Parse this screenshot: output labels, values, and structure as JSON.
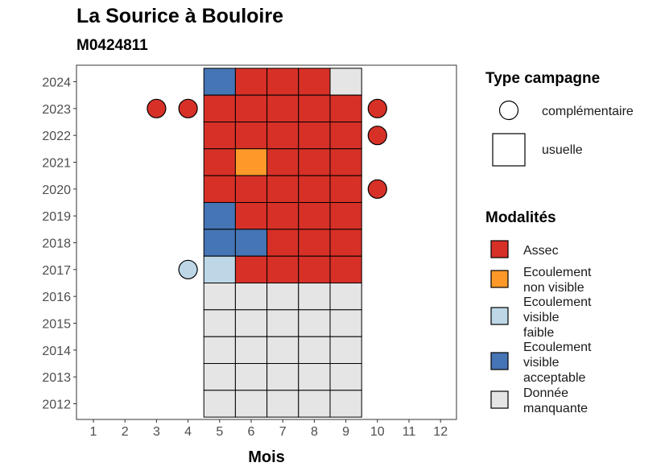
{
  "chart_data": {
    "type": "heatmap",
    "title": "La Sourice à Bouloire",
    "subtitle": "M0424811",
    "xlabel": "Mois",
    "ylabel": "",
    "x_ticks": [
      "1",
      "2",
      "3",
      "4",
      "5",
      "6",
      "7",
      "8",
      "9",
      "10",
      "11",
      "12"
    ],
    "y_ticks": [
      "2012",
      "2013",
      "2014",
      "2015",
      "2016",
      "2017",
      "2018",
      "2019",
      "2020",
      "2021",
      "2022",
      "2023",
      "2024"
    ],
    "grid": false,
    "legend_position": "right",
    "modalites": [
      {
        "key": "assec",
        "label": "Assec",
        "color": "#D73027"
      },
      {
        "key": "nonvis",
        "label": "Ecoulement non visible",
        "color": "#FE9929"
      },
      {
        "key": "faible",
        "label": "Ecoulement visible faible",
        "color": "#BDD7E7"
      },
      {
        "key": "accept",
        "label": "Ecoulement visible acceptable",
        "color": "#4575B4"
      },
      {
        "key": "manq",
        "label": "Donnée manquante",
        "color": "#E5E5E5"
      }
    ],
    "type_campagne": [
      {
        "key": "complementaire",
        "label": "complémentaire",
        "shape": "circle"
      },
      {
        "key": "usuelle",
        "label": "usuelle",
        "shape": "square"
      }
    ],
    "usuelle": [
      {
        "year": 2024,
        "month": 5,
        "value": "accept"
      },
      {
        "year": 2024,
        "month": 6,
        "value": "assec"
      },
      {
        "year": 2024,
        "month": 7,
        "value": "assec"
      },
      {
        "year": 2024,
        "month": 8,
        "value": "assec"
      },
      {
        "year": 2024,
        "month": 9,
        "value": "manq"
      },
      {
        "year": 2023,
        "month": 5,
        "value": "assec"
      },
      {
        "year": 2023,
        "month": 6,
        "value": "assec"
      },
      {
        "year": 2023,
        "month": 7,
        "value": "assec"
      },
      {
        "year": 2023,
        "month": 8,
        "value": "assec"
      },
      {
        "year": 2023,
        "month": 9,
        "value": "assec"
      },
      {
        "year": 2022,
        "month": 5,
        "value": "assec"
      },
      {
        "year": 2022,
        "month": 6,
        "value": "assec"
      },
      {
        "year": 2022,
        "month": 7,
        "value": "assec"
      },
      {
        "year": 2022,
        "month": 8,
        "value": "assec"
      },
      {
        "year": 2022,
        "month": 9,
        "value": "assec"
      },
      {
        "year": 2021,
        "month": 5,
        "value": "assec"
      },
      {
        "year": 2021,
        "month": 6,
        "value": "nonvis"
      },
      {
        "year": 2021,
        "month": 7,
        "value": "assec"
      },
      {
        "year": 2021,
        "month": 8,
        "value": "assec"
      },
      {
        "year": 2021,
        "month": 9,
        "value": "assec"
      },
      {
        "year": 2020,
        "month": 5,
        "value": "assec"
      },
      {
        "year": 2020,
        "month": 6,
        "value": "assec"
      },
      {
        "year": 2020,
        "month": 7,
        "value": "assec"
      },
      {
        "year": 2020,
        "month": 8,
        "value": "assec"
      },
      {
        "year": 2020,
        "month": 9,
        "value": "assec"
      },
      {
        "year": 2019,
        "month": 5,
        "value": "accept"
      },
      {
        "year": 2019,
        "month": 6,
        "value": "assec"
      },
      {
        "year": 2019,
        "month": 7,
        "value": "assec"
      },
      {
        "year": 2019,
        "month": 8,
        "value": "assec"
      },
      {
        "year": 2019,
        "month": 9,
        "value": "assec"
      },
      {
        "year": 2018,
        "month": 5,
        "value": "accept"
      },
      {
        "year": 2018,
        "month": 6,
        "value": "accept"
      },
      {
        "year": 2018,
        "month": 7,
        "value": "assec"
      },
      {
        "year": 2018,
        "month": 8,
        "value": "assec"
      },
      {
        "year": 2018,
        "month": 9,
        "value": "assec"
      },
      {
        "year": 2017,
        "month": 5,
        "value": "faible"
      },
      {
        "year": 2017,
        "month": 6,
        "value": "assec"
      },
      {
        "year": 2017,
        "month": 7,
        "value": "assec"
      },
      {
        "year": 2017,
        "month": 8,
        "value": "assec"
      },
      {
        "year": 2017,
        "month": 9,
        "value": "assec"
      },
      {
        "year": 2016,
        "month": 5,
        "value": "manq"
      },
      {
        "year": 2016,
        "month": 6,
        "value": "manq"
      },
      {
        "year": 2016,
        "month": 7,
        "value": "manq"
      },
      {
        "year": 2016,
        "month": 8,
        "value": "manq"
      },
      {
        "year": 2016,
        "month": 9,
        "value": "manq"
      },
      {
        "year": 2015,
        "month": 5,
        "value": "manq"
      },
      {
        "year": 2015,
        "month": 6,
        "value": "manq"
      },
      {
        "year": 2015,
        "month": 7,
        "value": "manq"
      },
      {
        "year": 2015,
        "month": 8,
        "value": "manq"
      },
      {
        "year": 2015,
        "month": 9,
        "value": "manq"
      },
      {
        "year": 2014,
        "month": 5,
        "value": "manq"
      },
      {
        "year": 2014,
        "month": 6,
        "value": "manq"
      },
      {
        "year": 2014,
        "month": 7,
        "value": "manq"
      },
      {
        "year": 2014,
        "month": 8,
        "value": "manq"
      },
      {
        "year": 2014,
        "month": 9,
        "value": "manq"
      },
      {
        "year": 2013,
        "month": 5,
        "value": "manq"
      },
      {
        "year": 2013,
        "month": 6,
        "value": "manq"
      },
      {
        "year": 2013,
        "month": 7,
        "value": "manq"
      },
      {
        "year": 2013,
        "month": 8,
        "value": "manq"
      },
      {
        "year": 2013,
        "month": 9,
        "value": "manq"
      },
      {
        "year": 2012,
        "month": 5,
        "value": "manq"
      },
      {
        "year": 2012,
        "month": 6,
        "value": "manq"
      },
      {
        "year": 2012,
        "month": 7,
        "value": "manq"
      },
      {
        "year": 2012,
        "month": 8,
        "value": "manq"
      },
      {
        "year": 2012,
        "month": 9,
        "value": "manq"
      }
    ],
    "complementaire": [
      {
        "year": 2023,
        "month": 3,
        "value": "assec"
      },
      {
        "year": 2023,
        "month": 4,
        "value": "assec"
      },
      {
        "year": 2023,
        "month": 10,
        "value": "assec"
      },
      {
        "year": 2022,
        "month": 10,
        "value": "assec"
      },
      {
        "year": 2020,
        "month": 10,
        "value": "assec"
      },
      {
        "year": 2017,
        "month": 4,
        "value": "faible"
      }
    ]
  },
  "legend": {
    "type_title": "Type campagne",
    "type_items": [
      {
        "label": "complémentaire"
      },
      {
        "label": "usuelle"
      }
    ],
    "mod_title": "Modalités",
    "mod_items": [
      {
        "line1": "Assec",
        "line2": "",
        "line3": ""
      },
      {
        "line1": "Ecoulement",
        "line2": "non visible",
        "line3": ""
      },
      {
        "line1": "Ecoulement",
        "line2": "visible",
        "line3": "faible"
      },
      {
        "line1": "Ecoulement",
        "line2": "visible",
        "line3": "acceptable"
      },
      {
        "line1": "Donnée",
        "line2": "manquante",
        "line3": ""
      }
    ]
  }
}
